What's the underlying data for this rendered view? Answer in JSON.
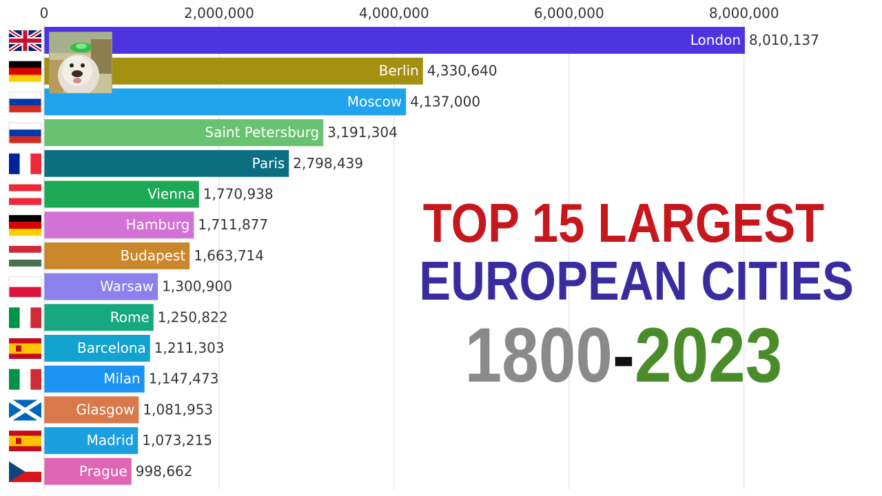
{
  "title": {
    "line1": "TOP 15 LARGEST",
    "line2": "EUROPEAN CITIES",
    "year_start": "1800",
    "dash": "-",
    "year_end": "2023",
    "colors": {
      "line1": "#c8161d",
      "line2": "#3a2ca0",
      "year_start": "#8a8a8a",
      "dash": "#111111",
      "year_end": "#4a8c2a"
    }
  },
  "thumbnail": {
    "icon": "dog-photo-icon"
  },
  "chart_data": {
    "type": "bar",
    "orientation": "horizontal",
    "xlim": [
      0,
      8400000
    ],
    "ticks": [
      0,
      2000000,
      4000000,
      6000000,
      8000000
    ],
    "tick_labels": [
      "0",
      "2,000,000",
      "4,000,000",
      "6,000,000",
      "8,000,000"
    ],
    "grid": true,
    "bars": [
      {
        "city": "London",
        "value": 8010137,
        "label": "8,010,137",
        "color": "#4e33e0",
        "flag": "uk"
      },
      {
        "city": "Berlin",
        "value": 4330640,
        "label": "4,330,640",
        "color": "#a38f10",
        "flag": "de"
      },
      {
        "city": "Moscow",
        "value": 4137000,
        "label": "4,137,000",
        "color": "#1fa3ec",
        "flag": "ru"
      },
      {
        "city": "Saint Petersburg",
        "value": 3191304,
        "label": "3,191,304",
        "color": "#68c26f",
        "flag": "ru"
      },
      {
        "city": "Paris",
        "value": 2798439,
        "label": "2,798,439",
        "color": "#0b6f80",
        "flag": "fr"
      },
      {
        "city": "Vienna",
        "value": 1770938,
        "label": "1,770,938",
        "color": "#1ca855",
        "flag": "at"
      },
      {
        "city": "Hamburg",
        "value": 1711877,
        "label": "1,711,877",
        "color": "#d271d6",
        "flag": "de"
      },
      {
        "city": "Budapest",
        "value": 1663714,
        "label": "1,663,714",
        "color": "#c9862a",
        "flag": "hu"
      },
      {
        "city": "Warsaw",
        "value": 1300900,
        "label": "1,300,900",
        "color": "#8b80ec",
        "flag": "pl"
      },
      {
        "city": "Rome",
        "value": 1250822,
        "label": "1,250,822",
        "color": "#16a87e",
        "flag": "it"
      },
      {
        "city": "Barcelona",
        "value": 1211303,
        "label": "1,211,303",
        "color": "#12a2cf",
        "flag": "es"
      },
      {
        "city": "Milan",
        "value": 1147473,
        "label": "1,147,473",
        "color": "#1a93f2",
        "flag": "it"
      },
      {
        "city": "Glasgow",
        "value": 1081953,
        "label": "1,081,953",
        "color": "#d9784a",
        "flag": "sco"
      },
      {
        "city": "Madrid",
        "value": 1073215,
        "label": "1,073,215",
        "color": "#1a9fe0",
        "flag": "es"
      },
      {
        "city": "Prague",
        "value": 998662,
        "label": "998,662",
        "color": "#e066b4",
        "flag": "cz"
      }
    ]
  }
}
